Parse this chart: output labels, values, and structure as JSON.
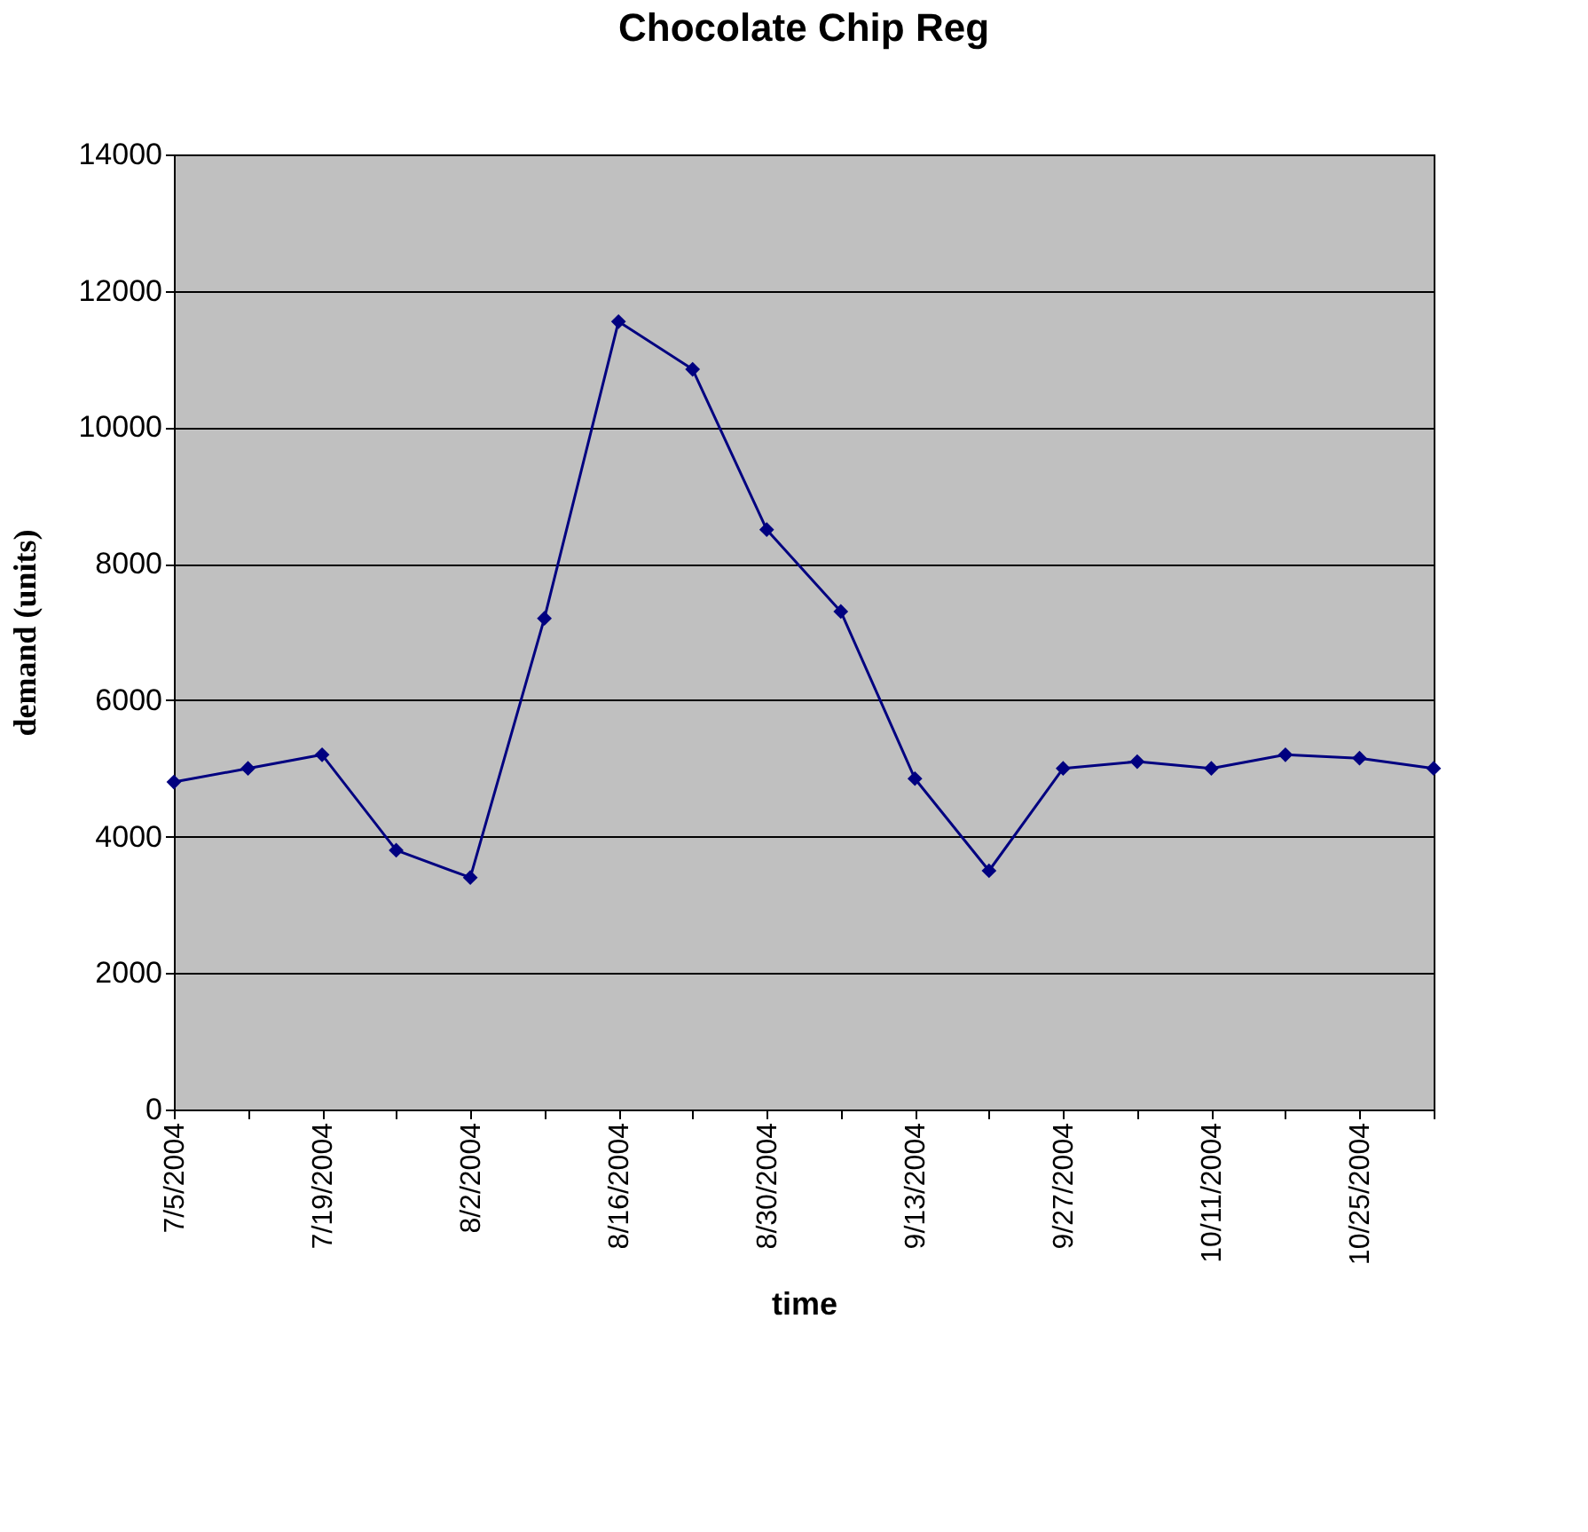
{
  "chart_data": {
    "type": "line",
    "title": "Chocolate Chip Reg",
    "xlabel": "time",
    "ylabel": "demand (units)",
    "categories": [
      "7/5/2004",
      null,
      "7/19/2004",
      null,
      "8/2/2004",
      null,
      "8/16/2004",
      null,
      "8/30/2004",
      null,
      "9/13/2004",
      null,
      "9/27/2004",
      null,
      "10/11/2004",
      null,
      "10/25/2004",
      null
    ],
    "series": [
      {
        "color": "#000080",
        "values": [
          4800,
          5000,
          5200,
          3800,
          3400,
          7200,
          11550,
          10850,
          8500,
          7300,
          4850,
          3500,
          5000,
          5100,
          5000,
          5200,
          5150,
          5000
        ]
      }
    ],
    "ylim": [
      0,
      14000
    ],
    "yticks": [
      0,
      2000,
      4000,
      6000,
      8000,
      10000,
      12000,
      14000
    ],
    "grid": "y",
    "marker": "diamond",
    "line_style": "solid"
  }
}
